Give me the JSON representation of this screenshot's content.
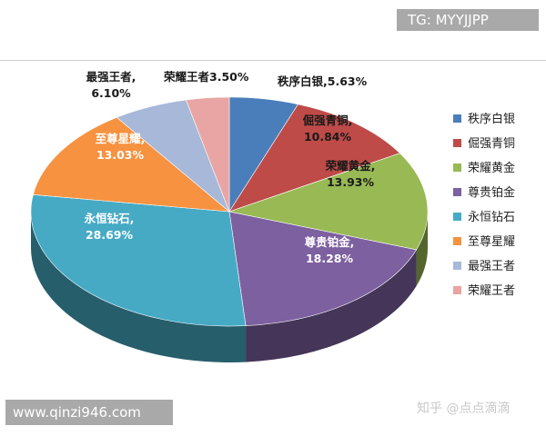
{
  "badges": {
    "tg": "TG: MYYJJPP",
    "url": "www.qinzi946.com",
    "watermark": "知乎 @点点滴滴"
  },
  "chart_data": {
    "type": "pie",
    "title": "",
    "legend_position": "right",
    "style": "3d",
    "slices": [
      {
        "name": "秩序白银",
        "value": 5.63,
        "label": "秩序白银,",
        "pct": "5.63%",
        "color": "#4a7ebb"
      },
      {
        "name": "倔强青铜",
        "value": 10.84,
        "label": "倔强青铜,",
        "pct": "10.84%",
        "color": "#be4b48"
      },
      {
        "name": "荣耀黄金",
        "value": 13.93,
        "label": "荣耀黄金,",
        "pct": "13.93%",
        "color": "#98b954"
      },
      {
        "name": "尊贵铂金",
        "value": 18.28,
        "label": "尊贵铂金,",
        "pct": "18.28%",
        "color": "#7d60a0"
      },
      {
        "name": "永恒钻石",
        "value": 28.69,
        "label": "永恒钻石,",
        "pct": "28.69%",
        "color": "#46aac5"
      },
      {
        "name": "至尊星耀",
        "value": 13.03,
        "label": "至尊星耀,",
        "pct": "13.03%",
        "color": "#f69240"
      },
      {
        "name": "最强王者",
        "value": 6.1,
        "label": "最强王者,",
        "pct": "6.10%",
        "color": "#a7b8d9"
      },
      {
        "name": "荣耀王者",
        "value": 3.5,
        "label": "荣耀王者",
        "pct": "3.50%",
        "color": "#e8a5a3"
      }
    ]
  }
}
